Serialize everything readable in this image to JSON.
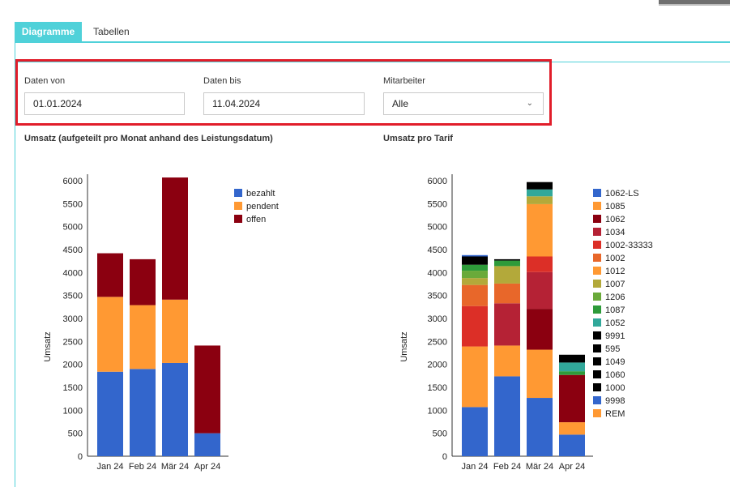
{
  "tabs": [
    {
      "label": "Diagramme",
      "active": true
    },
    {
      "label": "Tabellen",
      "active": false
    }
  ],
  "filters": {
    "date_from": {
      "label": "Daten von",
      "value": "01.01.2024"
    },
    "date_to": {
      "label": "Daten bis",
      "value": "11.04.2024"
    },
    "employee": {
      "label": "Mitarbeiter",
      "value": "Alle"
    }
  },
  "charts": {
    "left_title": "Umsatz (aufgeteilt pro Monat anhand des Leistungsdatum)",
    "right_title": "Umsatz pro Tarif"
  },
  "chart_data": [
    {
      "type": "bar",
      "stacked": true,
      "title": "Umsatz (aufgeteilt pro Monat anhand des Leistungsdatum)",
      "ylabel": "Umsatz",
      "ylim": [
        0,
        6000
      ],
      "yticks": [
        0,
        500,
        1000,
        1500,
        2000,
        2500,
        3000,
        3500,
        4000,
        4500,
        5000,
        5500,
        6000
      ],
      "categories": [
        "Jan 24",
        "Feb 24",
        "Mär 24",
        "Apr 24"
      ],
      "legend_position": "right",
      "series": [
        {
          "name": "bezahlt",
          "color": "#3366cc",
          "values": [
            1840,
            1900,
            2030,
            500
          ]
        },
        {
          "name": "pendent",
          "color": "#ff9933",
          "values": [
            1630,
            1390,
            1380,
            0
          ]
        },
        {
          "name": "offen",
          "color": "#8b0010",
          "values": [
            950,
            1000,
            2660,
            1910
          ]
        }
      ]
    },
    {
      "type": "bar",
      "stacked": true,
      "title": "Umsatz pro Tarif",
      "ylabel": "Umsatz",
      "ylim": [
        0,
        6000
      ],
      "yticks": [
        0,
        500,
        1000,
        1500,
        2000,
        2500,
        3000,
        3500,
        4000,
        4500,
        5000,
        5500,
        6000
      ],
      "categories": [
        "Jan 24",
        "Feb 24",
        "Mär 24",
        "Apr 24"
      ],
      "legend_position": "right",
      "series": [
        {
          "name": "1062-LS",
          "color": "#3366cc",
          "values": [
            1070,
            1740,
            1270,
            470
          ]
        },
        {
          "name": "1085",
          "color": "#ff9933",
          "values": [
            1320,
            670,
            1050,
            270
          ]
        },
        {
          "name": "1062",
          "color": "#8b0010",
          "values": [
            0,
            0,
            890,
            1030
          ]
        },
        {
          "name": "1034",
          "color": "#b52235",
          "values": [
            0,
            920,
            800,
            0
          ]
        },
        {
          "name": "1002-33333",
          "color": "#dc2f27",
          "values": [
            880,
            0,
            340,
            0
          ]
        },
        {
          "name": "1002",
          "color": "#e8672a",
          "values": [
            460,
            430,
            0,
            0
          ]
        },
        {
          "name": "1012",
          "color": "#ff9933",
          "values": [
            0,
            0,
            1140,
            0
          ]
        },
        {
          "name": "1007",
          "color": "#b3a93a",
          "values": [
            150,
            380,
            170,
            0
          ]
        },
        {
          "name": "1206",
          "color": "#6aaa3a",
          "values": [
            160,
            0,
            0,
            0
          ]
        },
        {
          "name": "1087",
          "color": "#2e9b3a",
          "values": [
            130,
            120,
            0,
            80
          ]
        },
        {
          "name": "1052",
          "color": "#31a89a",
          "values": [
            0,
            0,
            150,
            190
          ]
        },
        {
          "name": "9991",
          "color": "#000000",
          "values": [
            180,
            0,
            160,
            170
          ]
        },
        {
          "name": "595",
          "color": "#000000",
          "values": [
            0,
            30,
            0,
            0
          ]
        },
        {
          "name": "1049",
          "color": "#000000",
          "values": [
            0,
            0,
            0,
            0
          ]
        },
        {
          "name": "1060",
          "color": "#000000",
          "values": [
            0,
            0,
            0,
            0
          ]
        },
        {
          "name": "1000",
          "color": "#000000",
          "values": [
            0,
            0,
            0,
            0
          ]
        },
        {
          "name": "9998",
          "color": "#3366cc",
          "values": [
            30,
            0,
            0,
            0
          ]
        },
        {
          "name": "REM",
          "color": "#ff9933",
          "values": [
            0,
            0,
            0,
            0
          ]
        }
      ]
    }
  ]
}
